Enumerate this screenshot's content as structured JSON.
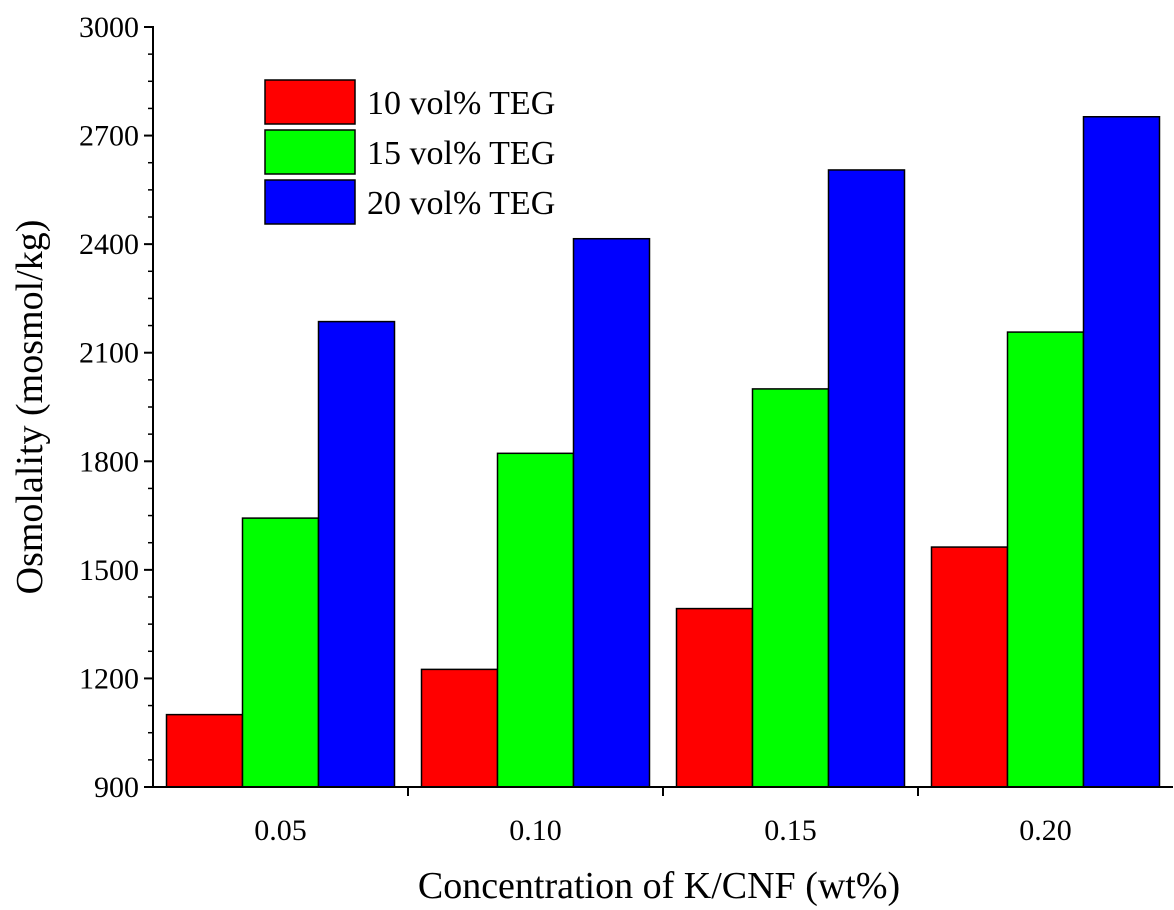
{
  "chart_data": {
    "type": "bar",
    "title": "",
    "xlabel": "Concentration of  K/CNF (wt%)",
    "ylabel": "Osmolality (mosmol/kg)",
    "categories": [
      "0.05",
      "0.10",
      "0.15",
      "0.20"
    ],
    "ylim": [
      900,
      3000
    ],
    "yticks": [
      900,
      1200,
      1500,
      1800,
      2100,
      2400,
      2700,
      3000
    ],
    "grid": false,
    "legend_position": "top-left",
    "series": [
      {
        "name": "10 vol% TEG",
        "color": "#ff0000",
        "values": [
          1100,
          1225,
          1393,
          1563
        ]
      },
      {
        "name": "15 vol% TEG",
        "color": "#00ff00",
        "values": [
          1643,
          1822,
          2000,
          2157
        ]
      },
      {
        "name": "20 vol% TEG",
        "color": "#0000ff",
        "values": [
          2186,
          2415,
          2605,
          2752
        ]
      }
    ]
  }
}
